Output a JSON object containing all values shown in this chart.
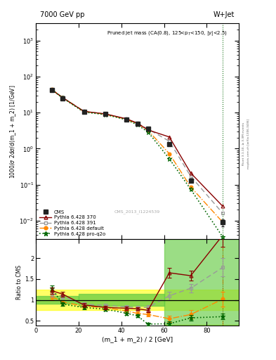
{
  "title_top": "7000 GeV pp",
  "title_right": "W+Jet",
  "panel_title": "Pruned jet mass (CA(0.8), 125<p_{T}<150, |y|<2.5)",
  "ylabel_main": "1000/σ 2dσ/d(m_1 + m_2) [1/GeV]",
  "ylabel_ratio": "Ratio to CMS",
  "xlabel": "(m_1 + m_2) / 2 [GeV]",
  "cms_label": "CMS_2013_I1224539",
  "right_label": "mcplots.cern.ch [arXiv:1306.3436]",
  "rivet_label": "Rivet 3.1.10, ≥ 3.3M events",
  "x_centers": [
    7.5,
    12.5,
    22.5,
    32.5,
    42.5,
    47.5,
    52.5,
    62.5,
    72.5,
    87.5
  ],
  "cms_y": [
    42.0,
    25.0,
    10.5,
    9.0,
    6.5,
    5.0,
    3.5,
    1.3,
    0.13,
    0.009
  ],
  "cms_yerr": [
    1.5,
    1.0,
    0.5,
    0.4,
    0.3,
    0.2,
    0.15,
    0.08,
    0.015,
    0.002
  ],
  "py370_y": [
    43.0,
    26.0,
    10.8,
    9.2,
    6.7,
    5.1,
    3.3,
    2.1,
    0.21,
    0.025
  ],
  "py391_y": [
    44.0,
    26.5,
    10.9,
    9.1,
    6.6,
    5.0,
    3.5,
    1.6,
    0.17,
    0.016
  ],
  "pydef_y": [
    43.5,
    26.0,
    10.7,
    9.0,
    6.5,
    4.8,
    3.2,
    0.72,
    0.086,
    0.009
  ],
  "pyq2o_y": [
    43.0,
    25.5,
    10.3,
    8.8,
    6.3,
    4.6,
    2.9,
    0.52,
    0.074,
    0.0035
  ],
  "ratio_370": [
    1.22,
    1.14,
    0.88,
    0.82,
    0.8,
    0.79,
    0.75,
    1.65,
    1.58,
    2.55
  ],
  "ratio_391": [
    1.15,
    1.08,
    0.9,
    0.87,
    0.83,
    0.82,
    0.82,
    1.1,
    1.28,
    1.78
  ],
  "ratio_def": [
    1.08,
    0.95,
    0.85,
    0.82,
    0.73,
    0.68,
    0.65,
    0.55,
    0.65,
    1.02
  ],
  "ratio_q2o": [
    1.28,
    0.9,
    0.82,
    0.78,
    0.68,
    0.62,
    0.42,
    0.43,
    0.57,
    0.6
  ],
  "ratio_370_err": [
    0.07,
    0.06,
    0.04,
    0.04,
    0.04,
    0.04,
    0.05,
    0.12,
    0.12,
    0.28
  ],
  "ratio_391_err": [
    0.07,
    0.05,
    0.04,
    0.04,
    0.04,
    0.04,
    0.05,
    0.1,
    0.1,
    0.22
  ],
  "ratio_def_err": [
    0.07,
    0.05,
    0.04,
    0.04,
    0.04,
    0.04,
    0.05,
    0.08,
    0.1,
    0.18
  ],
  "ratio_q2o_err": [
    0.07,
    0.05,
    0.04,
    0.04,
    0.04,
    0.04,
    0.04,
    0.05,
    0.07,
    0.07
  ],
  "color_cms": "#222222",
  "color_370": "#880000",
  "color_391": "#999999",
  "color_def": "#ff8800",
  "color_q2o": "#006600",
  "ylim_main": [
    0.003,
    3000
  ],
  "ylim_ratio": [
    0.38,
    2.45
  ],
  "xlim": [
    0,
    95
  ]
}
